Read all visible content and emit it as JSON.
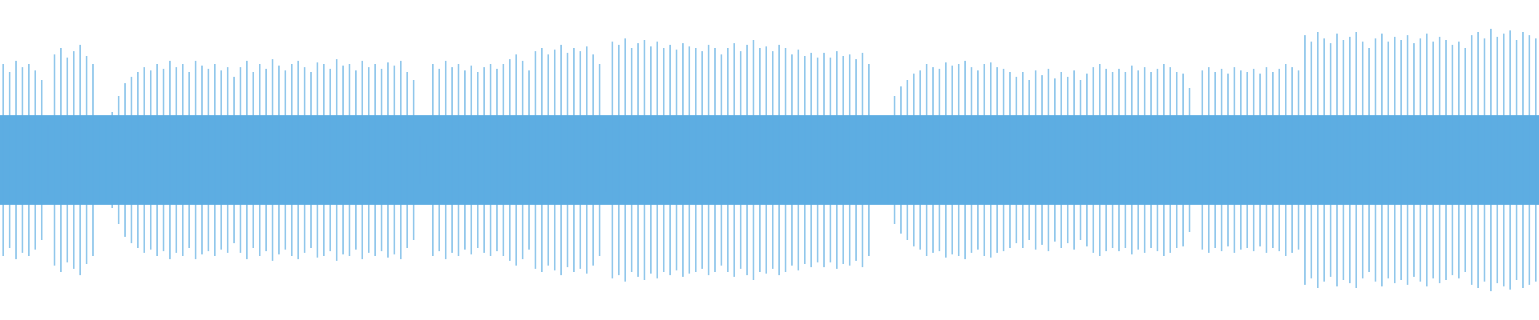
{
  "chart_data": {
    "type": "waveform",
    "color": "#5dade2",
    "ylim": [
      -1,
      1
    ],
    "values": [
      0.6,
      0.55,
      0.62,
      0.58,
      0.6,
      0.56,
      0.5,
      0.22,
      0.66,
      0.7,
      0.64,
      0.68,
      0.72,
      0.65,
      0.6,
      0.27,
      0.26,
      0.3,
      0.4,
      0.48,
      0.52,
      0.55,
      0.58,
      0.56,
      0.6,
      0.57,
      0.62,
      0.58,
      0.6,
      0.55,
      0.62,
      0.59,
      0.57,
      0.6,
      0.56,
      0.58,
      0.52,
      0.58,
      0.62,
      0.55,
      0.6,
      0.57,
      0.63,
      0.59,
      0.56,
      0.6,
      0.62,
      0.58,
      0.55,
      0.61,
      0.6,
      0.57,
      0.63,
      0.59,
      0.6,
      0.56,
      0.62,
      0.58,
      0.6,
      0.57,
      0.61,
      0.59,
      0.62,
      0.55,
      0.5,
      0.15,
      0.1,
      0.6,
      0.57,
      0.62,
      0.58,
      0.6,
      0.56,
      0.59,
      0.55,
      0.58,
      0.6,
      0.57,
      0.6,
      0.63,
      0.66,
      0.62,
      0.56,
      0.68,
      0.7,
      0.66,
      0.69,
      0.72,
      0.67,
      0.7,
      0.68,
      0.71,
      0.66,
      0.6,
      0.2,
      0.74,
      0.72,
      0.76,
      0.7,
      0.73,
      0.75,
      0.71,
      0.74,
      0.7,
      0.72,
      0.69,
      0.73,
      0.71,
      0.7,
      0.68,
      0.72,
      0.7,
      0.66,
      0.7,
      0.73,
      0.68,
      0.72,
      0.75,
      0.7,
      0.71,
      0.68,
      0.72,
      0.7,
      0.66,
      0.69,
      0.65,
      0.67,
      0.64,
      0.67,
      0.64,
      0.68,
      0.65,
      0.66,
      0.63,
      0.67,
      0.6,
      0.26,
      0.24,
      0.28,
      0.4,
      0.46,
      0.5,
      0.54,
      0.56,
      0.6,
      0.58,
      0.57,
      0.61,
      0.59,
      0.6,
      0.62,
      0.58,
      0.56,
      0.6,
      0.61,
      0.58,
      0.57,
      0.55,
      0.52,
      0.55,
      0.5,
      0.56,
      0.53,
      0.57,
      0.51,
      0.55,
      0.52,
      0.56,
      0.5,
      0.54,
      0.58,
      0.6,
      0.57,
      0.55,
      0.57,
      0.55,
      0.59,
      0.56,
      0.58,
      0.55,
      0.57,
      0.6,
      0.58,
      0.55,
      0.54,
      0.45,
      0.2,
      0.56,
      0.58,
      0.55,
      0.57,
      0.54,
      0.58,
      0.56,
      0.55,
      0.57,
      0.54,
      0.58,
      0.55,
      0.57,
      0.6,
      0.58,
      0.56,
      0.78,
      0.74,
      0.8,
      0.76,
      0.73,
      0.79,
      0.75,
      0.77,
      0.8,
      0.74,
      0.7,
      0.76,
      0.79,
      0.74,
      0.77,
      0.75,
      0.78,
      0.73,
      0.76,
      0.79,
      0.74,
      0.77,
      0.75,
      0.72,
      0.74,
      0.7,
      0.78,
      0.8,
      0.76,
      0.82,
      0.77,
      0.79,
      0.81,
      0.75,
      0.8,
      0.78,
      0.76
    ]
  }
}
